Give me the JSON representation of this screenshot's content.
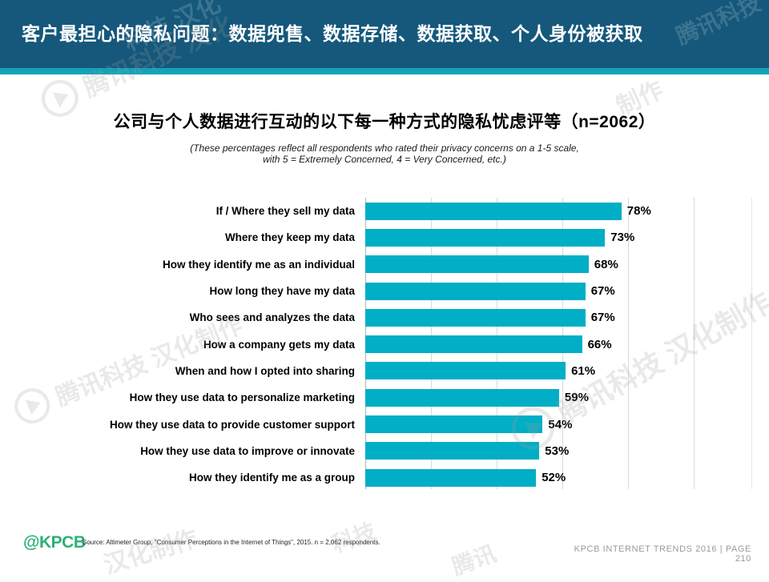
{
  "header": {
    "title": "客户最担心的隐私问题：数据兜售、数据存储、数据获取、个人身份被获取",
    "bg_color": "#15587B",
    "stripe_color": "#13A3B9"
  },
  "main": {
    "title": "公司与个人数据进行互动的以下每一种方式的隐私忧虑评等（n=2062）",
    "subtitle_line1": "(These percentages reflect all respondents who rated their privacy concerns on a 1-5 scale,",
    "subtitle_line2": "with 5 = Extremely Concerned, 4 = Very Concerned, etc.)"
  },
  "chart_data": {
    "type": "bar",
    "orientation": "horizontal",
    "categories": [
      "If / Where they sell my data",
      "Where they keep my data",
      "How they identify me as an individual",
      "How long they have my data",
      "Who sees and analyzes the data",
      "How a company gets my data",
      "When and how I opted into sharing",
      "How they use data to personalize marketing",
      "How they use data to provide customer support",
      "How they use data to improve or innovate",
      "How they identify me as a group"
    ],
    "values": [
      78,
      73,
      68,
      67,
      67,
      66,
      61,
      59,
      54,
      53,
      52
    ],
    "unit": "%",
    "bar_color": "#00AEC5",
    "xlim": [
      0,
      100
    ],
    "gridlines_percent": [
      0,
      20,
      40,
      60,
      80,
      100
    ],
    "grid": true,
    "legend": "none",
    "value_labels_shown": true
  },
  "footer": {
    "logo": "@KPCB",
    "logo_color": "#2CB175",
    "source": "Source: Altimeter Group, \"Consumer Perceptions in the Internet of Things\", 2015. n = 2,062 respondents.",
    "right_line1": "KPCB INTERNET TRENDS 2016   |   PAGE",
    "right_line2": "210"
  },
  "watermark": {
    "brand": "腾讯科技 汉化制作",
    "fragments": [
      {
        "text": "科技 汉化"
      },
      {
        "text": "腾讯科技"
      },
      {
        "text": "腾讯科技 汉化"
      },
      {
        "text": "腾讯科技 汉化制作"
      },
      {
        "text": "腾讯科技 汉化制作"
      },
      {
        "text": "汉化制作"
      },
      {
        "text": "科技"
      },
      {
        "text": "腾讯"
      },
      {
        "text": "制作"
      }
    ]
  }
}
